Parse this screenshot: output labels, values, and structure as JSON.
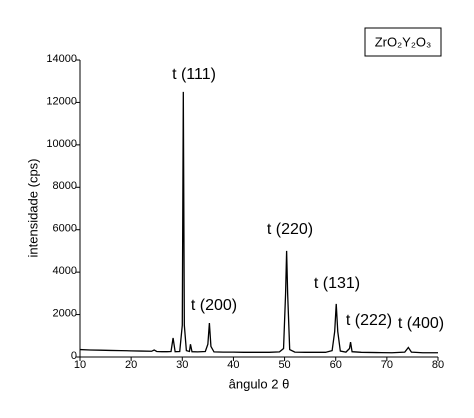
{
  "chart_data": {
    "type": "line",
    "x_label": "ângulo 2 θ",
    "y_label": "intensidade (cps)",
    "annotations": [
      "t (111)",
      "t (200)",
      "t (220)",
      "t (131)",
      "t (222)",
      "t (400)"
    ],
    "x": [
      10,
      12,
      14,
      16,
      18,
      20,
      22,
      24,
      24.5,
      25,
      26,
      27,
      27.8,
      28.2,
      28.6,
      29.5,
      30.0,
      30.2,
      30.4,
      30.8,
      31.4,
      31.6,
      31.9,
      33,
      34.5,
      35.0,
      35.3,
      35.6,
      36.2,
      38,
      40,
      42,
      43,
      45,
      47,
      49,
      49.8,
      50.2,
      50.4,
      50.6,
      51.0,
      52,
      54,
      56,
      58,
      59.3,
      59.8,
      60.1,
      60.4,
      60.9,
      62,
      62.7,
      62.9,
      63.2,
      65,
      68,
      71,
      73.5,
      74.2,
      74.8,
      77,
      80
    ],
    "series": [
      {
        "name": "ZrO₂Y₂O₃",
        "color": "#000000",
        "values": [
          350,
          330,
          320,
          310,
          300,
          290,
          280,
          270,
          330,
          260,
          250,
          250,
          260,
          900,
          250,
          260,
          1500,
          12500,
          1500,
          300,
          260,
          600,
          250,
          240,
          260,
          600,
          1600,
          500,
          240,
          230,
          230,
          220,
          220,
          220,
          220,
          240,
          400,
          3000,
          5000,
          3000,
          350,
          230,
          220,
          220,
          220,
          300,
          1200,
          2500,
          1200,
          280,
          230,
          400,
          700,
          250,
          220,
          210,
          200,
          230,
          450,
          230,
          200,
          200
        ]
      }
    ],
    "xlim": [
      10,
      80
    ],
    "xticks": [
      10,
      20,
      30,
      40,
      50,
      60,
      70,
      80
    ],
    "ylim": [
      0,
      14000
    ],
    "yticks": [
      0,
      2000,
      4000,
      6000,
      8000,
      10000,
      12000,
      14000
    ]
  }
}
